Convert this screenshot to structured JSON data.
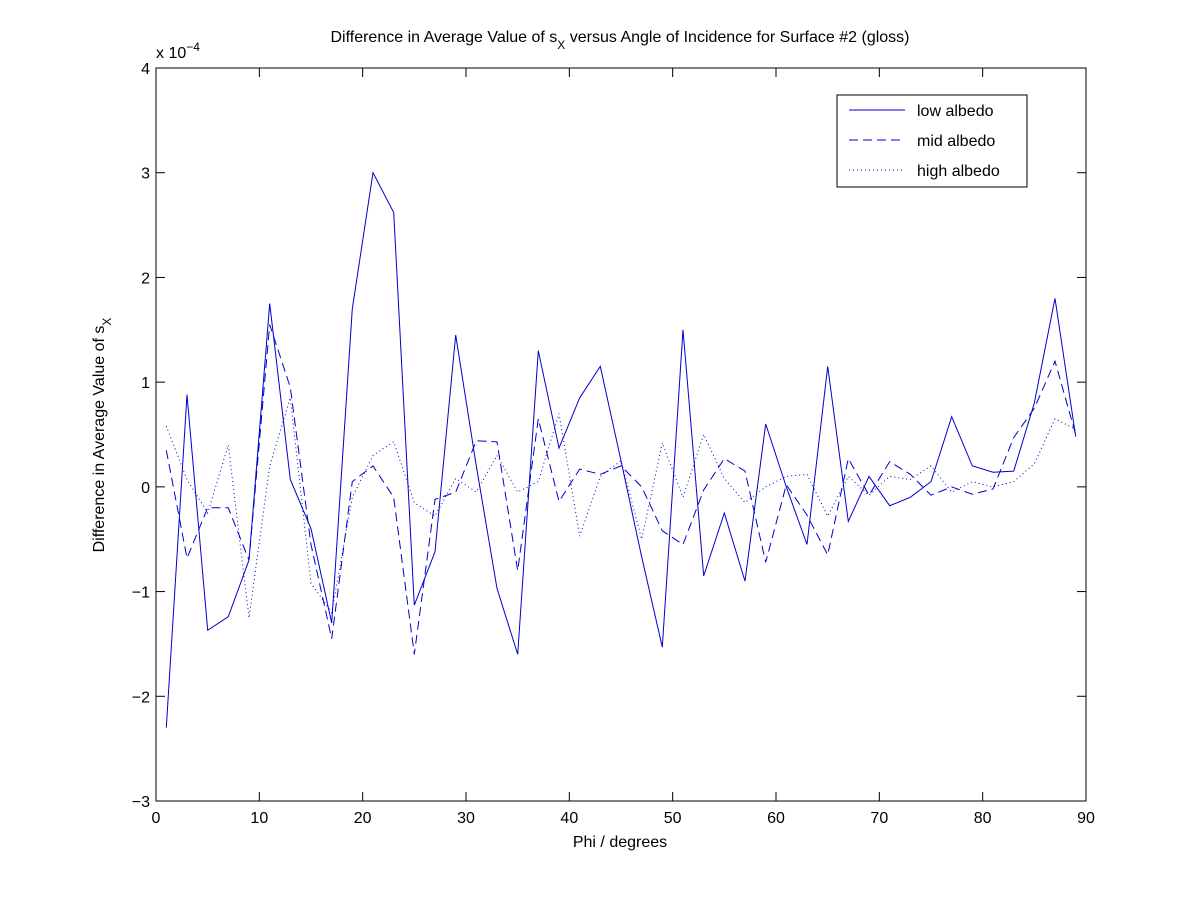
{
  "chart_data": {
    "type": "line",
    "title_main": "Difference in Average Value of s",
    "title_sub": "X",
    "title_rest": " versus Angle of Incidence for Surface #2 (gloss)",
    "xlabel": "Phi / degrees",
    "ylabel_main": "Difference in Average Value of s",
    "ylabel_sub": "X",
    "y_exponent_base": "x 10",
    "y_exponent_power": "−4",
    "xlim": [
      0,
      90
    ],
    "ylim": [
      -3,
      4
    ],
    "x_ticks": [
      0,
      10,
      20,
      30,
      40,
      50,
      60,
      70,
      80,
      90
    ],
    "y_ticks": [
      -3,
      -2,
      -1,
      0,
      1,
      2,
      3,
      4
    ],
    "x_tick_labels": [
      "0",
      "10",
      "20",
      "30",
      "40",
      "50",
      "60",
      "70",
      "80",
      "90"
    ],
    "y_tick_labels": [
      "−3",
      "−2",
      "−1",
      "0",
      "1",
      "2",
      "3",
      "4"
    ],
    "legend_position": "top-right",
    "color": "#0000cc",
    "x": [
      1,
      3,
      5,
      7,
      9,
      11,
      13,
      15,
      17,
      19,
      21,
      23,
      25,
      27,
      29,
      31,
      33,
      35,
      37,
      39,
      41,
      43,
      45,
      47,
      49,
      51,
      53,
      55,
      57,
      59,
      61,
      63,
      65,
      67,
      69,
      71,
      73,
      75,
      77,
      79,
      81,
      83,
      85,
      87,
      89
    ],
    "series": [
      {
        "name": "low albedo",
        "style": "solid",
        "values": [
          -2.3,
          0.88,
          -1.37,
          -1.24,
          -0.7,
          1.75,
          0.07,
          -0.4,
          -1.3,
          1.7,
          3.0,
          2.62,
          -1.13,
          -0.62,
          1.45,
          0.2,
          -0.97,
          -1.6,
          1.3,
          0.37,
          0.85,
          1.15,
          0.25,
          -0.67,
          -1.53,
          1.5,
          -0.85,
          -0.25,
          -0.9,
          0.6,
          0.0,
          -0.55,
          1.15,
          -0.33,
          0.1,
          -0.18,
          -0.1,
          0.05,
          0.67,
          0.2,
          0.14,
          0.15,
          0.8,
          1.8,
          0.48
        ]
      },
      {
        "name": "mid albedo",
        "style": "dashed",
        "values": [
          0.35,
          -0.68,
          -0.2,
          -0.2,
          -0.7,
          1.55,
          0.95,
          -0.55,
          -1.45,
          0.05,
          0.2,
          -0.1,
          -1.6,
          -0.12,
          -0.05,
          0.44,
          0.43,
          -0.8,
          0.65,
          -0.14,
          0.17,
          0.12,
          0.2,
          0.0,
          -0.42,
          -0.55,
          -0.03,
          0.27,
          0.15,
          -0.72,
          0.02,
          -0.27,
          -0.65,
          0.27,
          -0.08,
          0.24,
          0.12,
          -0.08,
          0.0,
          -0.07,
          -0.02,
          0.47,
          0.75,
          1.2,
          0.5
        ]
      },
      {
        "name": "high albedo",
        "style": "dotted",
        "values": [
          0.58,
          0.07,
          -0.25,
          0.4,
          -1.25,
          0.2,
          0.85,
          -0.92,
          -1.2,
          -0.1,
          0.3,
          0.43,
          -0.15,
          -0.28,
          0.08,
          -0.05,
          0.3,
          -0.05,
          0.05,
          0.7,
          -0.47,
          0.1,
          0.25,
          -0.5,
          0.42,
          -0.1,
          0.5,
          0.08,
          -0.15,
          0.0,
          0.1,
          0.12,
          -0.28,
          0.1,
          -0.08,
          0.1,
          0.07,
          0.2,
          -0.05,
          0.05,
          0.0,
          0.05,
          0.22,
          0.65,
          0.55
        ]
      }
    ]
  }
}
